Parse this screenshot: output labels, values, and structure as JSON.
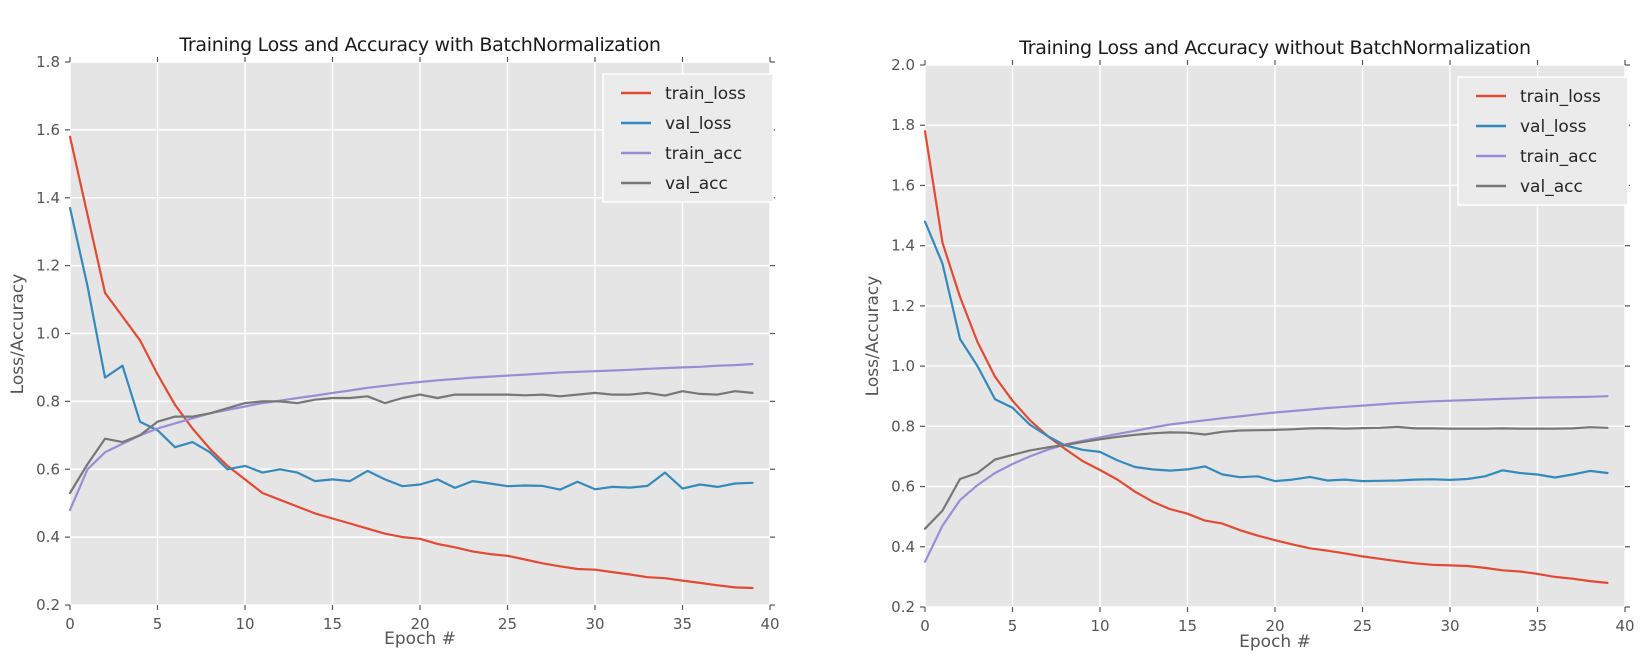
{
  "figure_background": "#FFFFFF",
  "chart_data": [
    {
      "type": "line",
      "title": "Training Loss and Accuracy with BatchNormalization",
      "xlabel": "Epoch #",
      "ylabel": "Loss/Accuracy",
      "xlim": [
        0,
        40
      ],
      "ylim": [
        0.2,
        1.8
      ],
      "x_ticks": [
        0,
        5,
        10,
        15,
        20,
        25,
        30,
        35,
        40
      ],
      "y_ticks": [
        0.2,
        0.4,
        0.6,
        0.8,
        1.0,
        1.2,
        1.4,
        1.6,
        1.8
      ],
      "grid": true,
      "legend_position": "upper right",
      "plot_background": "#E5E5E5",
      "grid_color": "#FFFFFF",
      "tick_color": "#555555",
      "legend_background": "#EBEBEB",
      "legend_border": "#FFFFFF",
      "epochs": [
        0,
        1,
        2,
        3,
        4,
        5,
        6,
        7,
        8,
        9,
        10,
        11,
        12,
        13,
        14,
        15,
        16,
        17,
        18,
        19,
        20,
        21,
        22,
        23,
        24,
        25,
        26,
        27,
        28,
        29,
        30,
        31,
        32,
        33,
        34,
        35,
        36,
        37,
        38,
        39
      ],
      "series": [
        {
          "name": "train_loss",
          "color": "#E24A33",
          "values": [
            1.58,
            1.35,
            1.12,
            1.05,
            0.98,
            0.88,
            0.79,
            0.72,
            0.66,
            0.61,
            0.57,
            0.53,
            0.51,
            0.49,
            0.47,
            0.455,
            0.44,
            0.425,
            0.41,
            0.4,
            0.395,
            0.38,
            0.37,
            0.358,
            0.35,
            0.345,
            0.334,
            0.323,
            0.314,
            0.306,
            0.304,
            0.297,
            0.29,
            0.282,
            0.279,
            0.272,
            0.265,
            0.258,
            0.252,
            0.25
          ]
        },
        {
          "name": "val_loss",
          "color": "#348ABD",
          "values": [
            1.37,
            1.14,
            0.87,
            0.905,
            0.74,
            0.715,
            0.665,
            0.68,
            0.65,
            0.6,
            0.61,
            0.59,
            0.6,
            0.59,
            0.565,
            0.57,
            0.565,
            0.595,
            0.57,
            0.55,
            0.555,
            0.57,
            0.545,
            0.565,
            0.558,
            0.55,
            0.552,
            0.551,
            0.54,
            0.563,
            0.541,
            0.548,
            0.546,
            0.551,
            0.59,
            0.543,
            0.555,
            0.548,
            0.558,
            0.56
          ]
        },
        {
          "name": "train_acc",
          "color": "#988ED5",
          "values": [
            0.48,
            0.6,
            0.65,
            0.675,
            0.7,
            0.72,
            0.735,
            0.75,
            0.765,
            0.775,
            0.785,
            0.795,
            0.802,
            0.81,
            0.817,
            0.825,
            0.832,
            0.84,
            0.846,
            0.852,
            0.857,
            0.862,
            0.866,
            0.87,
            0.873,
            0.876,
            0.879,
            0.882,
            0.885,
            0.887,
            0.889,
            0.891,
            0.893,
            0.896,
            0.898,
            0.9,
            0.902,
            0.905,
            0.907,
            0.91
          ]
        },
        {
          "name": "val_acc",
          "color": "#777777",
          "values": [
            0.53,
            0.615,
            0.69,
            0.68,
            0.7,
            0.74,
            0.755,
            0.755,
            0.765,
            0.78,
            0.795,
            0.8,
            0.8,
            0.795,
            0.805,
            0.81,
            0.81,
            0.815,
            0.795,
            0.81,
            0.82,
            0.81,
            0.82,
            0.82,
            0.82,
            0.82,
            0.818,
            0.82,
            0.815,
            0.82,
            0.825,
            0.82,
            0.82,
            0.825,
            0.817,
            0.83,
            0.822,
            0.82,
            0.83,
            0.825
          ]
        }
      ]
    },
    {
      "type": "line",
      "title": "Training Loss and Accuracy without BatchNormalization",
      "xlabel": "Epoch #",
      "ylabel": "Loss/Accuracy",
      "xlim": [
        0,
        40
      ],
      "ylim": [
        0.2,
        2.0
      ],
      "x_ticks": [
        0,
        5,
        10,
        15,
        20,
        25,
        30,
        35,
        40
      ],
      "y_ticks": [
        0.2,
        0.4,
        0.6,
        0.8,
        1.0,
        1.2,
        1.4,
        1.6,
        1.8,
        2.0
      ],
      "grid": true,
      "legend_position": "upper right",
      "plot_background": "#E5E5E5",
      "grid_color": "#FFFFFF",
      "tick_color": "#555555",
      "legend_background": "#EBEBEB",
      "legend_border": "#FFFFFF",
      "epochs": [
        0,
        1,
        2,
        3,
        4,
        5,
        6,
        7,
        8,
        9,
        10,
        11,
        12,
        13,
        14,
        15,
        16,
        17,
        18,
        19,
        20,
        21,
        22,
        23,
        24,
        25,
        26,
        27,
        28,
        29,
        30,
        31,
        32,
        33,
        34,
        35,
        36,
        37,
        38,
        39
      ],
      "series": [
        {
          "name": "train_loss",
          "color": "#E24A33",
          "values": [
            1.78,
            1.41,
            1.23,
            1.08,
            0.965,
            0.885,
            0.82,
            0.768,
            0.725,
            0.685,
            0.655,
            0.623,
            0.583,
            0.55,
            0.525,
            0.51,
            0.487,
            0.477,
            0.455,
            0.437,
            0.422,
            0.408,
            0.395,
            0.387,
            0.378,
            0.368,
            0.36,
            0.352,
            0.345,
            0.34,
            0.338,
            0.336,
            0.33,
            0.322,
            0.318,
            0.31,
            0.3,
            0.294,
            0.286,
            0.28
          ]
        },
        {
          "name": "val_loss",
          "color": "#348ABD",
          "values": [
            1.48,
            1.34,
            1.09,
            1.0,
            0.89,
            0.862,
            0.805,
            0.768,
            0.737,
            0.722,
            0.715,
            0.687,
            0.665,
            0.657,
            0.653,
            0.657,
            0.667,
            0.64,
            0.631,
            0.634,
            0.618,
            0.623,
            0.632,
            0.62,
            0.623,
            0.618,
            0.619,
            0.62,
            0.623,
            0.624,
            0.622,
            0.625,
            0.634,
            0.654,
            0.645,
            0.64,
            0.63,
            0.64,
            0.652,
            0.645
          ]
        },
        {
          "name": "train_acc",
          "color": "#988ED5",
          "values": [
            0.35,
            0.47,
            0.555,
            0.605,
            0.645,
            0.675,
            0.7,
            0.722,
            0.74,
            0.752,
            0.763,
            0.775,
            0.785,
            0.796,
            0.806,
            0.813,
            0.82,
            0.827,
            0.833,
            0.84,
            0.846,
            0.851,
            0.856,
            0.861,
            0.865,
            0.869,
            0.873,
            0.877,
            0.88,
            0.883,
            0.885,
            0.887,
            0.889,
            0.891,
            0.893,
            0.895,
            0.896,
            0.897,
            0.898,
            0.9
          ]
        },
        {
          "name": "val_acc",
          "color": "#777777",
          "values": [
            0.46,
            0.52,
            0.625,
            0.645,
            0.69,
            0.705,
            0.72,
            0.73,
            0.738,
            0.748,
            0.757,
            0.765,
            0.772,
            0.777,
            0.78,
            0.779,
            0.773,
            0.782,
            0.786,
            0.787,
            0.788,
            0.79,
            0.793,
            0.794,
            0.792,
            0.794,
            0.795,
            0.798,
            0.793,
            0.793,
            0.792,
            0.792,
            0.792,
            0.793,
            0.792,
            0.792,
            0.792,
            0.793,
            0.797,
            0.795
          ]
        }
      ]
    }
  ]
}
